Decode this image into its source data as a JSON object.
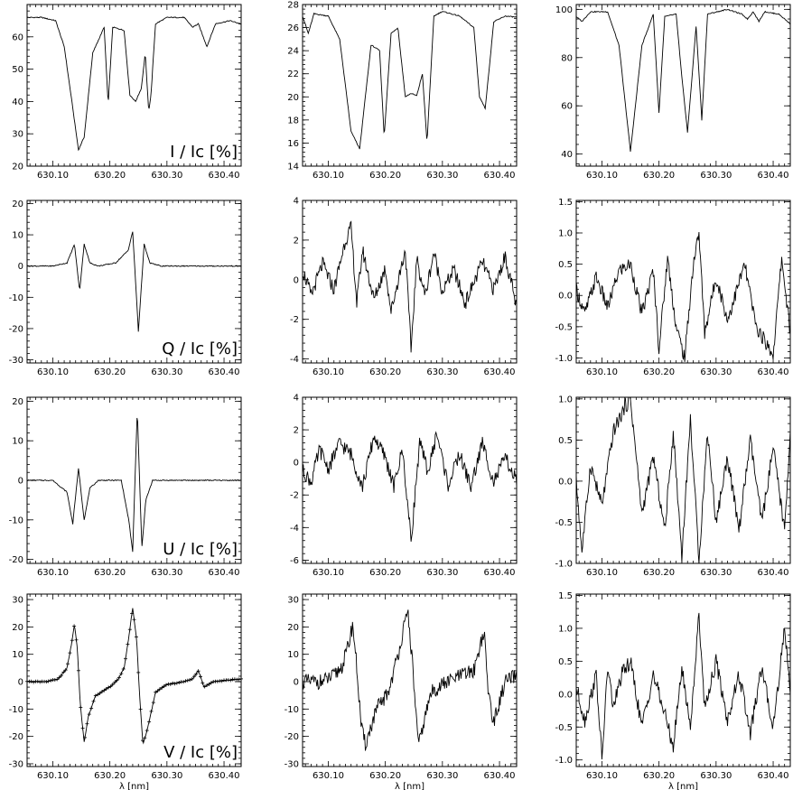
{
  "xlabel": "λ [nm]",
  "x_ticks": [
    "630.10",
    "630.20",
    "630.30",
    "630.40"
  ],
  "chart_data": [
    {
      "type": "line",
      "row": 0,
      "col": 0,
      "ylabel": "I / Ic [%]",
      "x": [
        630.055,
        630.08,
        630.105,
        630.12,
        630.135,
        630.145,
        630.155,
        630.17,
        630.19,
        630.197,
        630.205,
        630.225,
        630.235,
        630.245,
        630.255,
        630.262,
        630.268,
        630.272,
        630.28,
        630.3,
        630.33,
        630.345,
        630.355,
        630.37,
        630.385,
        630.41,
        630.43
      ],
      "y": [
        66,
        66,
        65,
        57,
        38,
        25,
        29,
        55,
        63,
        39,
        63,
        62,
        42,
        40,
        44,
        55,
        37,
        42,
        64,
        66,
        66,
        63,
        64,
        57,
        64,
        65,
        64
      ],
      "ylim": [
        20,
        70
      ],
      "yticks": [
        20,
        30,
        40,
        50,
        60
      ],
      "markers": false
    },
    {
      "type": "line",
      "row": 0,
      "col": 1,
      "ylabel": "",
      "x": [
        630.055,
        630.065,
        630.075,
        630.1,
        630.12,
        630.14,
        630.155,
        630.175,
        630.19,
        630.198,
        630.21,
        630.222,
        630.235,
        630.245,
        630.255,
        630.265,
        630.273,
        630.285,
        630.3,
        630.33,
        630.355,
        630.365,
        630.375,
        630.39,
        630.41,
        630.43
      ],
      "y": [
        27,
        25.5,
        27.2,
        27,
        25,
        17,
        15.5,
        24.5,
        24,
        16.5,
        25.5,
        26,
        20,
        20.3,
        20.1,
        22,
        16,
        27,
        27.4,
        27,
        26,
        20,
        19,
        26.5,
        27,
        26.9
      ],
      "ylim": [
        14,
        28
      ],
      "yticks": [
        14,
        16,
        18,
        20,
        22,
        24,
        26,
        28
      ],
      "markers": false
    },
    {
      "type": "line",
      "row": 0,
      "col": 2,
      "ylabel": "",
      "x": [
        630.055,
        630.065,
        630.08,
        630.11,
        630.13,
        630.15,
        630.17,
        630.19,
        630.2,
        630.21,
        630.23,
        630.24,
        630.25,
        630.265,
        630.275,
        630.285,
        630.32,
        630.345,
        630.355,
        630.365,
        630.375,
        630.385,
        630.41,
        630.43
      ],
      "y": [
        97,
        95,
        99,
        99,
        85,
        41,
        85,
        98,
        57,
        97,
        98,
        72,
        49,
        93,
        54,
        98,
        100,
        98,
        96,
        99,
        95,
        99,
        98,
        94
      ],
      "ylim": [
        35,
        102
      ],
      "yticks": [
        40,
        60,
        80,
        100
      ],
      "markers": false
    },
    {
      "type": "line",
      "row": 1,
      "col": 0,
      "ylabel": "Q / Ic [%]",
      "x": [
        630.055,
        630.1,
        630.125,
        630.138,
        630.147,
        630.155,
        630.165,
        630.18,
        630.21,
        630.232,
        630.24,
        630.25,
        630.26,
        630.27,
        630.29,
        630.33,
        630.38,
        630.43
      ],
      "y": [
        0,
        0,
        1,
        7,
        -8,
        7,
        1,
        0,
        1,
        5,
        11,
        -21,
        7,
        1,
        0,
        0,
        0,
        0
      ],
      "ylim": [
        -31,
        21
      ],
      "yticks": [
        -30,
        -20,
        -10,
        0,
        10,
        20
      ],
      "markers": false
    },
    {
      "type": "line",
      "row": 1,
      "col": 1,
      "ylabel": "",
      "x": [
        630.055,
        630.07,
        630.09,
        630.11,
        630.13,
        630.14,
        630.15,
        630.16,
        630.18,
        630.2,
        630.21,
        630.225,
        630.235,
        630.245,
        630.255,
        630.27,
        630.285,
        630.3,
        630.32,
        630.34,
        630.37,
        630.39,
        630.41,
        630.43
      ],
      "y": [
        0.5,
        -0.8,
        0.8,
        -0.5,
        2,
        2.6,
        -1.2,
        1.5,
        -1,
        0.6,
        -1.6,
        0.3,
        1.5,
        -3.5,
        1,
        -0.8,
        1.4,
        -0.6,
        0.5,
        -1.2,
        0.9,
        -0.5,
        1.2,
        -1.4
      ],
      "ylim": [
        -4.2,
        4
      ],
      "yticks": [
        -4,
        -2,
        0,
        2,
        4
      ],
      "markers": false
    },
    {
      "type": "line",
      "row": 1,
      "col": 2,
      "ylabel": "",
      "x": [
        630.055,
        630.07,
        630.09,
        630.11,
        630.13,
        630.15,
        630.17,
        630.19,
        630.2,
        630.215,
        630.23,
        630.245,
        630.26,
        630.27,
        630.28,
        630.3,
        630.32,
        630.35,
        630.37,
        630.4,
        630.415,
        630.43
      ],
      "y": [
        0.1,
        -0.3,
        0.3,
        -0.2,
        0.4,
        0.5,
        -0.3,
        0.4,
        -0.85,
        0.6,
        -0.5,
        -1.0,
        0.5,
        1.0,
        -0.6,
        0.3,
        -0.4,
        0.5,
        -0.5,
        -0.95,
        0.6,
        -0.6
      ],
      "ylim": [
        -1.08,
        1.52
      ],
      "yticks": [
        -1.0,
        -0.5,
        0.0,
        0.5,
        1.0,
        1.5
      ],
      "markers": false
    },
    {
      "type": "line",
      "row": 2,
      "col": 0,
      "ylabel": "U / Ic [%]",
      "x": [
        630.055,
        630.1,
        630.125,
        630.135,
        630.145,
        630.155,
        630.165,
        630.18,
        630.22,
        630.233,
        630.24,
        630.248,
        630.256,
        630.263,
        630.275,
        630.3,
        630.35,
        630.43
      ],
      "y": [
        0,
        0,
        -3,
        -11,
        3,
        -10,
        -2,
        0,
        0,
        -10,
        -18,
        18,
        -17,
        -5,
        0,
        0,
        0,
        0
      ],
      "ylim": [
        -21,
        21
      ],
      "yticks": [
        -20,
        -10,
        0,
        10,
        20
      ],
      "markers": false
    },
    {
      "type": "line",
      "row": 2,
      "col": 1,
      "ylabel": "",
      "x": [
        630.055,
        630.07,
        630.085,
        630.1,
        630.12,
        630.14,
        630.16,
        630.18,
        630.2,
        630.215,
        630.23,
        630.245,
        630.26,
        630.275,
        630.29,
        630.31,
        630.33,
        630.35,
        630.37,
        630.39,
        630.41,
        630.43
      ],
      "y": [
        -0.5,
        -1.2,
        0.8,
        -0.4,
        1.2,
        0.5,
        -1.5,
        1.6,
        0.3,
        -1.5,
        0.8,
        -4.8,
        1.2,
        -0.6,
        1.8,
        -1.4,
        0.5,
        -1.5,
        1.2,
        -1.2,
        0.3,
        -1.2
      ],
      "ylim": [
        -6.2,
        4
      ],
      "yticks": [
        -6,
        -4,
        -2,
        0,
        2,
        4
      ],
      "markers": false
    },
    {
      "type": "line",
      "row": 2,
      "col": 2,
      "ylabel": "",
      "x": [
        630.055,
        630.065,
        630.08,
        630.1,
        630.12,
        630.14,
        630.15,
        630.17,
        630.19,
        630.21,
        630.225,
        630.24,
        630.255,
        630.27,
        630.285,
        630.3,
        630.32,
        630.34,
        630.36,
        630.38,
        630.4,
        630.42,
        630.43
      ],
      "y": [
        0,
        -0.85,
        0.2,
        -0.3,
        0.6,
        0.9,
        1.0,
        -0.4,
        0.3,
        -0.6,
        0.6,
        -0.9,
        0.75,
        -0.95,
        0.6,
        -0.5,
        0.3,
        -0.6,
        0.5,
        -0.5,
        0.4,
        -0.6,
        0.6
      ],
      "ylim": [
        -1.0,
        1.02
      ],
      "yticks": [
        -1.0,
        -0.5,
        0.0,
        0.5,
        1.0
      ],
      "markers": false
    },
    {
      "type": "line",
      "row": 3,
      "col": 0,
      "ylabel": "V / Ic [%]",
      "x": [
        630.055,
        630.09,
        630.11,
        630.125,
        630.133,
        630.138,
        630.143,
        630.148,
        630.155,
        630.162,
        630.175,
        630.2,
        630.215,
        630.225,
        630.233,
        630.24,
        630.247,
        630.253,
        630.258,
        630.265,
        630.28,
        630.3,
        630.33,
        630.345,
        630.355,
        630.365,
        630.38,
        630.43
      ],
      "y": [
        0,
        0,
        1,
        5,
        14,
        21,
        12,
        -8,
        -22,
        -13,
        -5,
        -2,
        1,
        5,
        16,
        27,
        15,
        -8,
        -23,
        -18,
        -4,
        -1,
        0,
        1,
        4,
        -2,
        0,
        1
      ],
      "ylim": [
        -31,
        32
      ],
      "yticks": [
        -30,
        -20,
        -10,
        0,
        10,
        20,
        30
      ],
      "markers": true
    },
    {
      "type": "line",
      "row": 3,
      "col": 1,
      "ylabel": "",
      "x": [
        630.055,
        630.09,
        630.11,
        630.125,
        630.135,
        630.143,
        630.15,
        630.158,
        630.165,
        630.185,
        630.205,
        630.22,
        630.233,
        630.24,
        630.248,
        630.258,
        630.265,
        630.28,
        630.3,
        630.33,
        630.355,
        630.368,
        630.373,
        630.38,
        630.39,
        630.41,
        630.43
      ],
      "y": [
        0,
        0,
        2,
        6,
        13,
        21,
        5,
        -17,
        -23,
        -10,
        -4,
        8,
        20,
        25,
        5,
        -24,
        -17,
        -4,
        -1,
        2,
        4,
        15,
        18,
        -3,
        -15,
        0,
        2
      ],
      "ylim": [
        -31,
        32
      ],
      "yticks": [
        -30,
        -20,
        -10,
        0,
        10,
        20,
        30
      ],
      "markers": false
    },
    {
      "type": "line",
      "row": 3,
      "col": 2,
      "ylabel": "",
      "x": [
        630.055,
        630.07,
        630.09,
        630.1,
        630.11,
        630.12,
        630.135,
        630.15,
        630.17,
        630.19,
        630.21,
        630.225,
        630.24,
        630.255,
        630.27,
        630.28,
        630.3,
        630.32,
        630.34,
        630.36,
        630.38,
        630.4,
        630.42,
        630.43
      ],
      "y": [
        0.1,
        -0.4,
        0.3,
        -1.0,
        0.4,
        -0.2,
        0.3,
        0.5,
        -0.5,
        0.3,
        -0.3,
        -0.8,
        0.4,
        -0.5,
        1.2,
        -0.2,
        0.5,
        -0.4,
        0.3,
        -0.6,
        0.4,
        -0.5,
        1.0,
        0.1
      ],
      "ylim": [
        -1.1,
        1.52
      ],
      "yticks": [
        -1.0,
        -0.5,
        0.0,
        0.5,
        1.0,
        1.5
      ],
      "markers": false
    }
  ]
}
